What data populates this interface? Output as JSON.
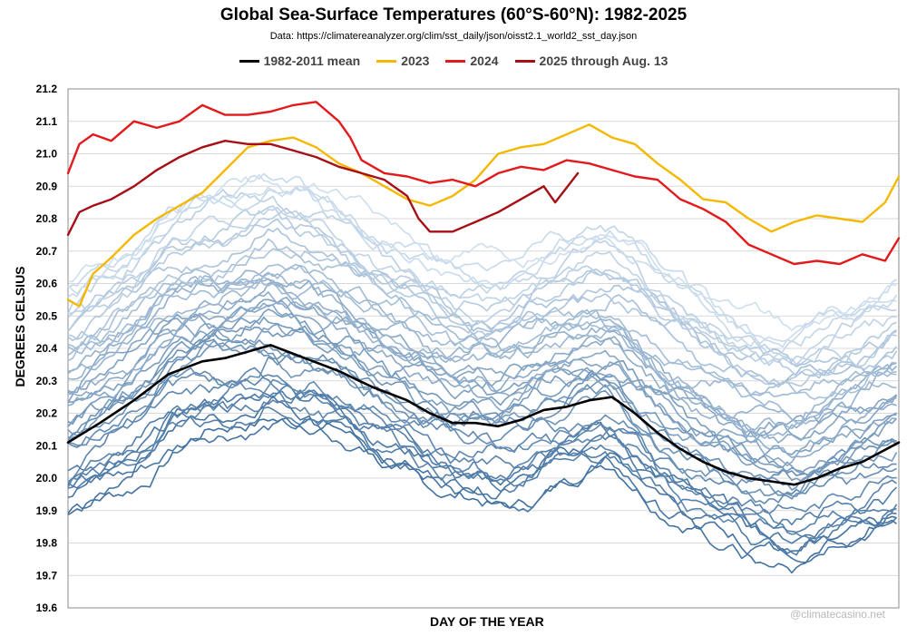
{
  "chart_data": {
    "type": "line",
    "title": "Global Sea-Surface Temperatures (60°S-60°N): 1982-2025",
    "subtitle": "Data: https://climatereanalyzer.org/clim/sst_daily/json/oisst2.1_world2_sst_day.json",
    "xlabel": "DAY OF THE YEAR",
    "ylabel": "DEGREES CELSIUS",
    "ylim": [
      19.6,
      21.2
    ],
    "xlim": [
      1,
      366
    ],
    "yticks": [
      "21.2",
      "21.1",
      "21.0",
      "20.9",
      "20.8",
      "20.7",
      "20.6",
      "20.5",
      "20.4",
      "20.3",
      "20.2",
      "20.1",
      "20.0",
      "19.9",
      "19.8",
      "19.7",
      "19.6"
    ],
    "grid": "horizontal",
    "legend_position": "top",
    "credit": "@climatecasino.net",
    "series": [
      {
        "name": "1982-2011 mean",
        "color": "#000000",
        "width": 2.6,
        "x": [
          1,
          15,
          30,
          45,
          60,
          70,
          80,
          90,
          105,
          120,
          135,
          150,
          160,
          170,
          180,
          190,
          200,
          210,
          220,
          230,
          240,
          250,
          260,
          270,
          280,
          290,
          300,
          310,
          320,
          330,
          340,
          350,
          366
        ],
        "y": [
          20.11,
          20.17,
          20.24,
          20.32,
          20.36,
          20.37,
          20.39,
          20.41,
          20.37,
          20.33,
          20.28,
          20.24,
          20.2,
          20.17,
          20.17,
          20.16,
          20.18,
          20.21,
          20.22,
          20.24,
          20.25,
          20.2,
          20.14,
          20.09,
          20.05,
          20.02,
          20.0,
          19.99,
          19.98,
          20.0,
          20.03,
          20.05,
          20.11
        ]
      },
      {
        "name": "2023",
        "color": "#f5b800",
        "width": 2.4,
        "x": [
          1,
          6,
          12,
          20,
          30,
          40,
          50,
          60,
          70,
          80,
          90,
          100,
          110,
          120,
          130,
          140,
          150,
          160,
          170,
          180,
          190,
          200,
          210,
          220,
          230,
          240,
          250,
          260,
          270,
          280,
          290,
          300,
          310,
          320,
          330,
          340,
          350,
          360,
          366
        ],
        "y": [
          20.55,
          20.53,
          20.63,
          20.68,
          20.75,
          20.8,
          20.84,
          20.88,
          20.95,
          21.02,
          21.04,
          21.05,
          21.02,
          20.97,
          20.94,
          20.9,
          20.86,
          20.84,
          20.87,
          20.92,
          21.0,
          21.02,
          21.03,
          21.06,
          21.09,
          21.05,
          21.03,
          20.97,
          20.92,
          20.86,
          20.85,
          20.8,
          20.76,
          20.79,
          20.81,
          20.8,
          20.79,
          20.85,
          20.93
        ]
      },
      {
        "name": "2024",
        "color": "#e31a1c",
        "width": 2.4,
        "x": [
          1,
          6,
          12,
          20,
          30,
          40,
          50,
          60,
          70,
          80,
          90,
          100,
          110,
          120,
          125,
          130,
          140,
          150,
          160,
          170,
          180,
          190,
          200,
          210,
          220,
          230,
          240,
          250,
          260,
          270,
          280,
          290,
          300,
          310,
          320,
          330,
          340,
          350,
          360,
          366
        ],
        "y": [
          20.94,
          21.03,
          21.06,
          21.04,
          21.1,
          21.08,
          21.1,
          21.15,
          21.12,
          21.12,
          21.13,
          21.15,
          21.16,
          21.1,
          21.05,
          20.98,
          20.94,
          20.93,
          20.91,
          20.92,
          20.9,
          20.94,
          20.96,
          20.95,
          20.98,
          20.97,
          20.95,
          20.93,
          20.92,
          20.86,
          20.83,
          20.79,
          20.72,
          20.69,
          20.66,
          20.67,
          20.66,
          20.69,
          20.67,
          20.74
        ]
      },
      {
        "name": "2025 through Aug. 13",
        "color": "#a50f15",
        "width": 2.4,
        "x": [
          1,
          6,
          12,
          20,
          30,
          40,
          50,
          60,
          70,
          80,
          90,
          100,
          110,
          120,
          130,
          140,
          150,
          155,
          160,
          170,
          180,
          190,
          200,
          210,
          215,
          225
        ],
        "y": [
          20.75,
          20.82,
          20.84,
          20.86,
          20.9,
          20.95,
          20.99,
          21.02,
          21.04,
          21.03,
          21.03,
          21.01,
          20.99,
          20.96,
          20.94,
          20.92,
          20.87,
          20.8,
          20.76,
          20.76,
          20.79,
          20.82,
          20.86,
          20.9,
          20.85,
          20.94
        ]
      }
    ]
  }
}
